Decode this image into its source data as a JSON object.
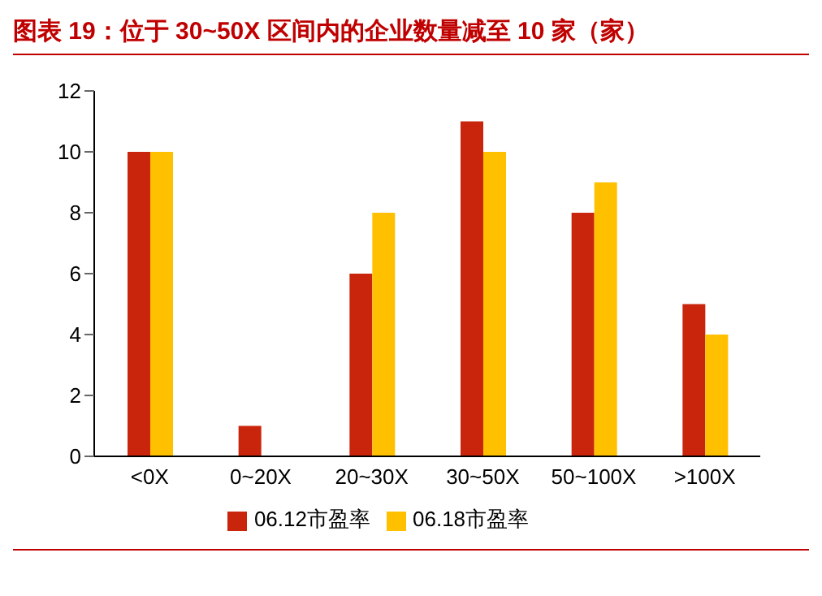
{
  "chart_data": {
    "type": "bar",
    "title": "图表 19：位于 30~50X 区间内的企业数量减至 10 家（家）",
    "categories": [
      "<0X",
      "0~20X",
      "20~30X",
      "30~50X",
      "50~100X",
      ">100X"
    ],
    "series": [
      {
        "name": "06.12市盈率",
        "color": "#c9250c",
        "values": [
          10,
          1,
          6,
          11,
          8,
          5
        ]
      },
      {
        "name": "06.18市盈率",
        "color": "#ffc000",
        "values": [
          10,
          0,
          8,
          10,
          9,
          4
        ]
      }
    ],
    "ylim": [
      0,
      12
    ],
    "yticks": [
      0,
      2,
      4,
      6,
      8,
      10,
      12
    ],
    "grid": false,
    "legend": "bottom"
  }
}
